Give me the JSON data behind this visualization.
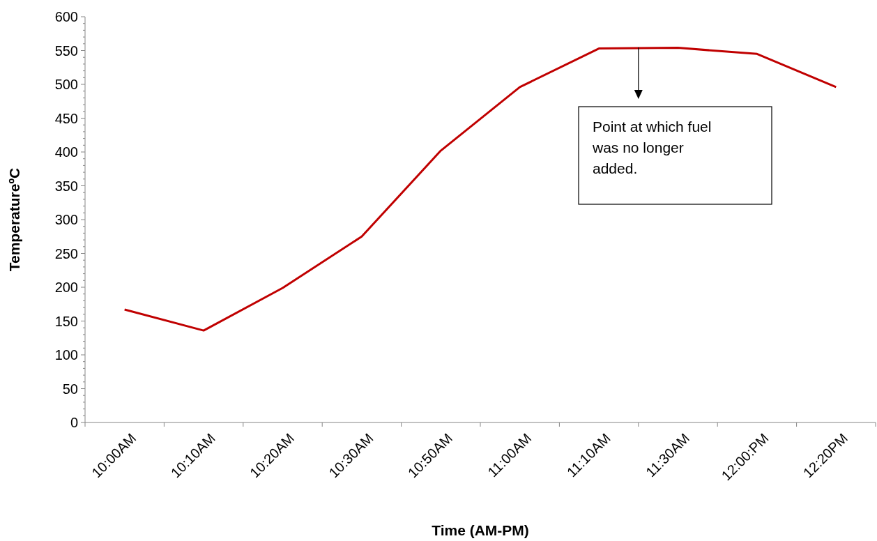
{
  "chart_data": {
    "type": "line",
    "xlabel": "Time (AM-PM)",
    "ylabel": "TemperatureºC",
    "categories": [
      "10:00AM",
      "10:10AM",
      "10:20AM",
      "10:30AM",
      "10:50AM",
      "11:00AM",
      "11:10AM",
      "11:30AM",
      "12:00:PM",
      "12:20PM"
    ],
    "series": [
      {
        "color": "#c00000",
        "values": [
          167,
          136,
          199,
          275,
          402,
          496,
          553,
          554,
          545,
          496
        ]
      }
    ],
    "ylim": [
      0,
      600
    ],
    "yticks": [
      0,
      50,
      100,
      150,
      200,
      250,
      300,
      350,
      400,
      450,
      500,
      550,
      600
    ],
    "grid": false,
    "marker": "none",
    "line_style": "solid",
    "annotations": [
      "Point at which fuel was no longer added."
    ]
  }
}
